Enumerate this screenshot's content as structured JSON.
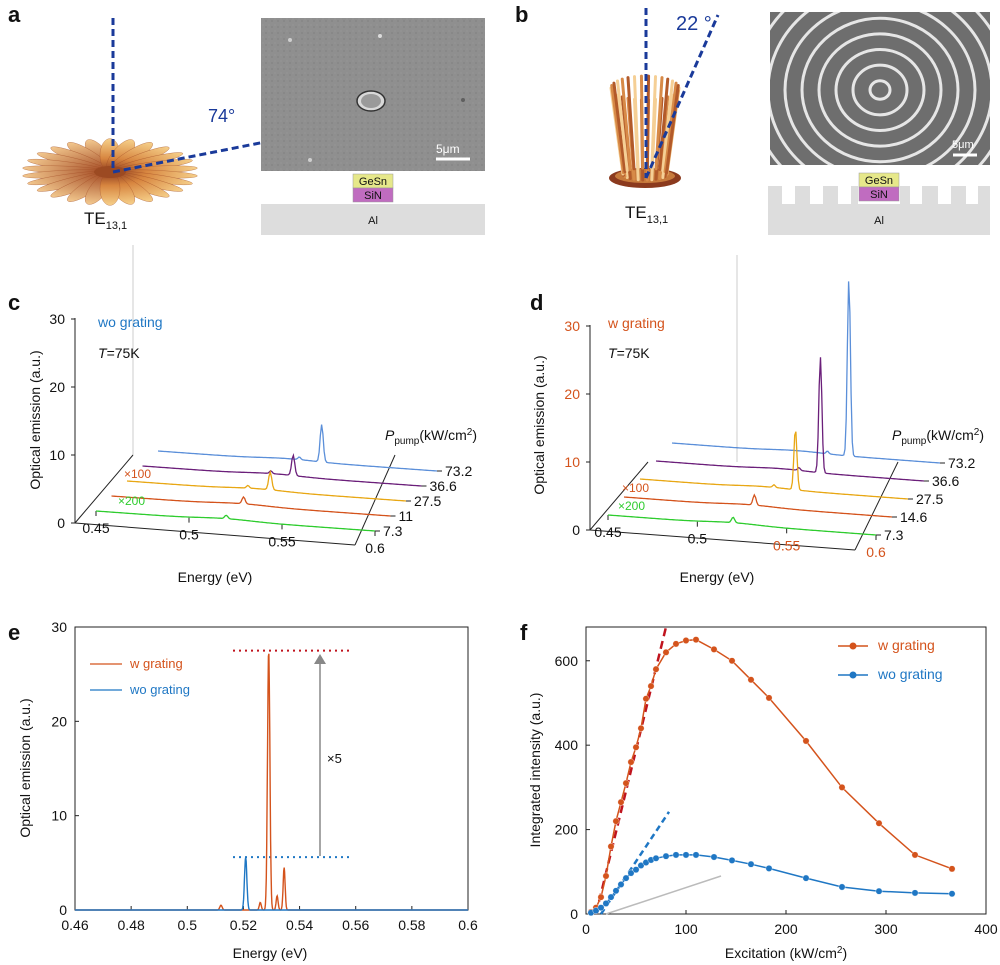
{
  "panels": {
    "a": {
      "letter": "a",
      "mode_label": "TE",
      "mode_sub": "13,1",
      "angle": "74°",
      "scale_bar": "5μm",
      "stack": [
        "GeSn",
        "SiN",
        "Al"
      ]
    },
    "b": {
      "letter": "b",
      "mode_label": "TE",
      "mode_sub": "13,1",
      "angle": "22 °",
      "scale_bar": "5μm",
      "stack": [
        "GeSn",
        "SiN",
        "Al"
      ]
    },
    "c": {
      "letter": "c",
      "condition": "wo grating",
      "temperature_prefix": "T",
      "temperature_suffix": "=75K",
      "y_label": "Optical emission (a.u.)",
      "x_label": "Energy (eV)",
      "y_ticks": [
        "0",
        "10",
        "20",
        "30"
      ],
      "x_ticks": [
        "0.45",
        "0.5",
        "0.55",
        "0.6"
      ],
      "pump_label_main": "P",
      "pump_label_sub": "pump",
      "pump_label_unit": "(kW/cm",
      "pump_label_sup": "2",
      "pump_label_end": ")",
      "pumps": [
        "73.2",
        "36.6",
        "27.5",
        "11",
        "7.3"
      ],
      "multipliers": [
        "×100",
        "×200"
      ]
    },
    "d": {
      "letter": "d",
      "condition": "w grating",
      "temperature_prefix": "T",
      "temperature_suffix": "=75K",
      "y_label": "Optical emission (a.u.)",
      "x_label": "Energy (eV)",
      "y_ticks": [
        "0",
        "10",
        "20",
        "30"
      ],
      "x_ticks": [
        "0.45",
        "0.5",
        "0.55",
        "0.6"
      ],
      "pump_label_main": "P",
      "pump_label_sub": "pump",
      "pump_label_unit": "(kW/cm",
      "pump_label_sup": "2",
      "pump_label_end": ")",
      "pumps": [
        "73.2",
        "36.6",
        "27.5",
        "14.6",
        "7.3"
      ],
      "multipliers": [
        "×100",
        "×200"
      ]
    },
    "e": {
      "letter": "e",
      "legend": [
        "w grating",
        "wo grating"
      ],
      "annotation": "×5"
    },
    "f": {
      "letter": "f",
      "legend": [
        "w grating",
        "wo grating"
      ]
    }
  },
  "colors": {
    "orange": "#d4531c",
    "blue": "#1f77c4",
    "purple": "#6b1f7a",
    "yellow": "#e8a714",
    "green": "#2ecc2e",
    "lightblue": "#5b8fd9",
    "darkred": "#c0141e",
    "navy": "#1a3a9a"
  },
  "chart_data": [
    {
      "panel": "c",
      "type": "line",
      "title": "",
      "xlabel": "Energy (eV)",
      "ylabel": "Optical emission (a.u.)",
      "xlim": [
        0.45,
        0.6
      ],
      "ylim": [
        0,
        30
      ],
      "series": [
        {
          "name": "73.2",
          "peaks": [
            {
              "x": 0.538,
              "y": 5.5
            }
          ]
        },
        {
          "name": "36.6",
          "peaks": [
            {
              "x": 0.531,
              "y": 3.0
            }
          ]
        },
        {
          "name": "27.5",
          "peaks": [
            {
              "x": 0.527,
              "y": 2.6
            }
          ]
        },
        {
          "name": "11",
          "peaks": [
            {
              "x": 0.521,
              "y": 1.0
            }
          ]
        },
        {
          "name": "7.3",
          "peaks": [
            {
              "x": 0.52,
              "y": 0.5
            }
          ]
        }
      ]
    },
    {
      "panel": "d",
      "type": "line",
      "title": "",
      "xlabel": "Energy (eV)",
      "ylabel": "Optical emission (a.u.)",
      "xlim": [
        0.45,
        0.6
      ],
      "ylim": [
        0,
        30
      ],
      "series": [
        {
          "name": "73.2",
          "peaks": [
            {
              "x": 0.549,
              "y": 26
            }
          ]
        },
        {
          "name": "36.6",
          "peaks": [
            {
              "x": 0.542,
              "y": 17
            }
          ]
        },
        {
          "name": "27.5",
          "peaks": [
            {
              "x": 0.537,
              "y": 9
            }
          ]
        },
        {
          "name": "14.6",
          "peaks": [
            {
              "x": 0.523,
              "y": 1.5
            }
          ]
        },
        {
          "name": "7.3",
          "peaks": [
            {
              "x": 0.52,
              "y": 0.8
            }
          ]
        }
      ]
    },
    {
      "panel": "e",
      "type": "line",
      "title": "",
      "xlabel": "Energy (eV)",
      "ylabel": "Optical emission (a.u.)",
      "xlim": [
        0.46,
        0.6
      ],
      "ylim": [
        0,
        30
      ],
      "x_ticks": [
        0.46,
        0.48,
        0.5,
        0.52,
        0.54,
        0.56,
        0.58,
        0.6
      ],
      "y_ticks": [
        0,
        10,
        20,
        30
      ],
      "series": [
        {
          "name": "w grating",
          "peaks": [
            {
              "x": 0.529,
              "y": 27.5,
              "w": 0.0006
            },
            {
              "x": 0.5345,
              "y": 4.5,
              "w": 0.0005
            },
            {
              "x": 0.532,
              "y": 1.5,
              "w": 0.0005
            },
            {
              "x": 0.512,
              "y": 0.5,
              "w": 0.0006
            },
            {
              "x": 0.526,
              "y": 0.8,
              "w": 0.0005
            }
          ]
        },
        {
          "name": "wo grating",
          "peaks": [
            {
              "x": 0.5208,
              "y": 5.6,
              "w": 0.0006
            }
          ]
        }
      ],
      "ref_lines": [
        27.5,
        5.6
      ]
    },
    {
      "panel": "f",
      "type": "line",
      "title": "",
      "xlabel": "Excitation (kW/cm2)",
      "ylabel": "Integrated intensity (a.u.)",
      "xlim": [
        0,
        400
      ],
      "ylim": [
        0,
        680
      ],
      "x_ticks": [
        0,
        100,
        200,
        300,
        400
      ],
      "y_ticks": [
        0,
        200,
        400,
        600
      ],
      "series": [
        {
          "name": "w grating",
          "x": [
            5,
            10,
            15,
            20,
            25,
            30,
            35,
            40,
            45,
            50,
            55,
            60,
            65,
            70,
            80,
            90,
            100,
            110,
            128,
            146,
            165,
            183,
            220,
            256,
            293,
            329,
            366
          ],
          "y": [
            5,
            15,
            40,
            90,
            160,
            220,
            265,
            310,
            360,
            395,
            440,
            510,
            540,
            580,
            620,
            640,
            648,
            650,
            627,
            600,
            555,
            512,
            410,
            300,
            215,
            140,
            107
          ]
        },
        {
          "name": "wo grating",
          "x": [
            5,
            10,
            15,
            20,
            25,
            30,
            35,
            40,
            45,
            50,
            55,
            60,
            65,
            70,
            80,
            90,
            100,
            110,
            128,
            146,
            165,
            183,
            220,
            256,
            293,
            329,
            366
          ],
          "y": [
            3,
            8,
            15,
            25,
            40,
            55,
            70,
            85,
            97,
            105,
            115,
            122,
            128,
            132,
            137,
            140,
            140,
            140,
            135,
            127,
            118,
            108,
            85,
            64,
            54,
            50,
            48
          ]
        }
      ],
      "fit_lines": [
        {
          "x": [
            10,
            80
          ],
          "y": [
            0,
            680
          ]
        },
        {
          "x": [
            15,
            83
          ],
          "y": [
            0,
            242
          ]
        },
        {
          "x": [
            20,
            135
          ],
          "y": [
            0,
            90
          ]
        }
      ]
    }
  ]
}
